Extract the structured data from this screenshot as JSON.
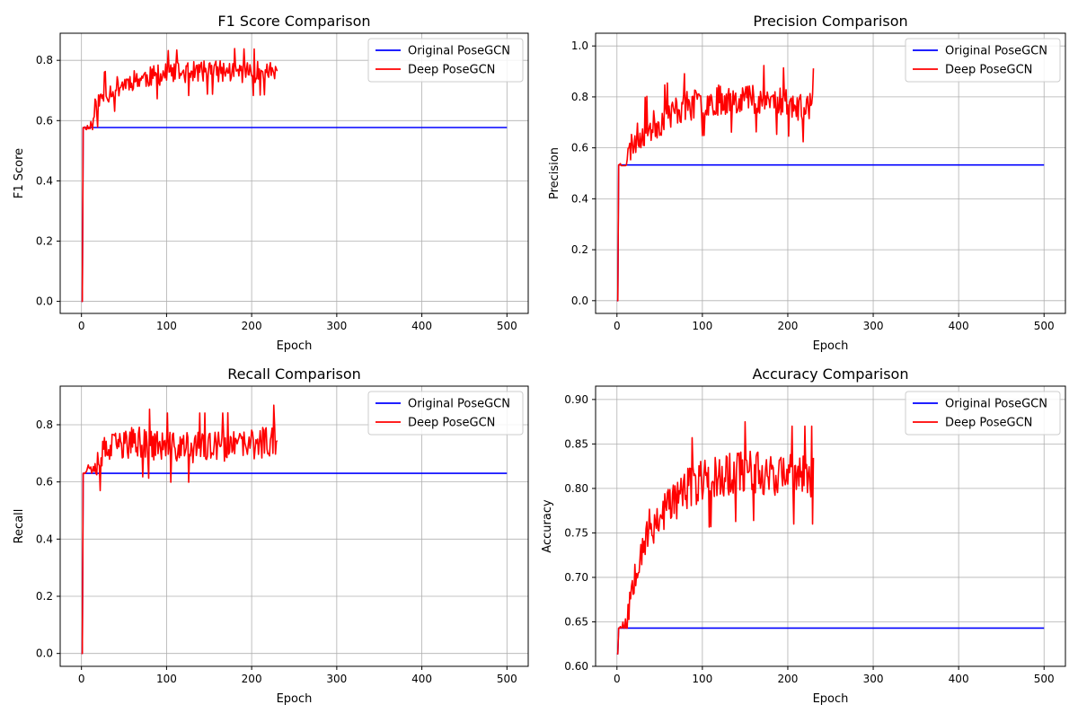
{
  "figure": {
    "background": "#ffffff",
    "grid_color": "#b0b0b0",
    "legend_border": "#cccccc"
  },
  "chart_data": [
    {
      "type": "line",
      "title": "F1 Score Comparison",
      "xlabel": "Epoch",
      "ylabel": "F1 Score",
      "xlim": [
        -25,
        525
      ],
      "ylim": [
        -0.04,
        0.89
      ],
      "xticks": [
        0,
        100,
        200,
        300,
        400,
        500
      ],
      "yticks": [
        0.0,
        0.2,
        0.4,
        0.6,
        0.8
      ],
      "ytick_decimals": 1,
      "grid": true,
      "legend": "top-right",
      "series": [
        {
          "name": "Original PoseGCN",
          "color": "#0000ff",
          "kind": "constant",
          "start": 0,
          "end": 500,
          "start_value": 0.0,
          "value": 0.577,
          "jump_at": 2
        },
        {
          "name": "Deep PoseGCN",
          "color": "#ff0000",
          "kind": "noisy",
          "end": 230,
          "start_value": 0.0,
          "jump_at": 2,
          "seed": 11,
          "anchors": [
            [
              2,
              0.577
            ],
            [
              10,
              0.577
            ],
            [
              15,
              0.64
            ],
            [
              25,
              0.68
            ],
            [
              40,
              0.71
            ],
            [
              60,
              0.735
            ],
            [
              100,
              0.755
            ],
            [
              150,
              0.765
            ],
            [
              200,
              0.76
            ],
            [
              230,
              0.765
            ]
          ],
          "noise": 0.035,
          "clip": [
            0.57,
            0.85
          ]
        }
      ]
    },
    {
      "type": "line",
      "title": "Precision Comparison",
      "xlabel": "Epoch",
      "ylabel": "Precision",
      "xlim": [
        -25,
        525
      ],
      "ylim": [
        -0.05,
        1.05
      ],
      "xticks": [
        0,
        100,
        200,
        300,
        400,
        500
      ],
      "yticks": [
        0.0,
        0.2,
        0.4,
        0.6,
        0.8,
        1.0
      ],
      "ytick_decimals": 1,
      "grid": true,
      "legend": "top-right",
      "series": [
        {
          "name": "Original PoseGCN",
          "color": "#0000ff",
          "kind": "constant",
          "start": 0,
          "end": 500,
          "start_value": 0.0,
          "value": 0.533,
          "jump_at": 2
        },
        {
          "name": "Deep PoseGCN",
          "color": "#ff0000",
          "kind": "noisy",
          "end": 230,
          "start_value": 0.0,
          "jump_at": 2,
          "seed": 23,
          "anchors": [
            [
              2,
              0.533
            ],
            [
              10,
              0.54
            ],
            [
              18,
              0.62
            ],
            [
              30,
              0.66
            ],
            [
              50,
              0.7
            ],
            [
              70,
              0.75
            ],
            [
              100,
              0.78
            ],
            [
              150,
              0.8
            ],
            [
              200,
              0.78
            ],
            [
              215,
              0.75
            ],
            [
              230,
              0.78
            ]
          ],
          "noise": 0.06,
          "clip": [
            0.53,
            1.0
          ]
        }
      ]
    },
    {
      "type": "line",
      "title": "Recall Comparison",
      "xlabel": "Epoch",
      "ylabel": "Recall",
      "xlim": [
        -25,
        525
      ],
      "ylim": [
        -0.045,
        0.935
      ],
      "xticks": [
        0,
        100,
        200,
        300,
        400,
        500
      ],
      "yticks": [
        0.0,
        0.2,
        0.4,
        0.6,
        0.8
      ],
      "ytick_decimals": 1,
      "grid": true,
      "legend": "top-right",
      "series": [
        {
          "name": "Original PoseGCN",
          "color": "#0000ff",
          "kind": "constant",
          "start": 0,
          "end": 500,
          "start_value": 0.0,
          "value": 0.63,
          "jump_at": 2
        },
        {
          "name": "Deep PoseGCN",
          "color": "#ff0000",
          "kind": "noisy",
          "end": 230,
          "start_value": 0.0,
          "jump_at": 2,
          "seed": 37,
          "anchors": [
            [
              2,
              0.63
            ],
            [
              12,
              0.66
            ],
            [
              25,
              0.7
            ],
            [
              45,
              0.73
            ],
            [
              70,
              0.74
            ],
            [
              100,
              0.72
            ],
            [
              130,
              0.72
            ],
            [
              170,
              0.72
            ],
            [
              200,
              0.73
            ],
            [
              230,
              0.75
            ]
          ],
          "noise": 0.055,
          "clip": [
            0.52,
            0.89
          ]
        }
      ]
    },
    {
      "type": "line",
      "title": "Accuracy Comparison",
      "xlabel": "Epoch",
      "ylabel": "Accuracy",
      "xlim": [
        -25,
        525
      ],
      "ylim": [
        0.6,
        0.915
      ],
      "xticks": [
        0,
        100,
        200,
        300,
        400,
        500
      ],
      "yticks": [
        0.6,
        0.65,
        0.7,
        0.75,
        0.8,
        0.85,
        0.9
      ],
      "ytick_decimals": 2,
      "grid": true,
      "legend": "top-right",
      "series": [
        {
          "name": "Original PoseGCN",
          "color": "#0000ff",
          "kind": "constant",
          "start": 0,
          "end": 500,
          "start_value": 0.614,
          "value": 0.643,
          "jump_at": 2
        },
        {
          "name": "Deep PoseGCN",
          "color": "#ff0000",
          "kind": "noisy",
          "end": 230,
          "start_value": 0.614,
          "jump_at": 2,
          "seed": 53,
          "anchors": [
            [
              2,
              0.643
            ],
            [
              12,
              0.645
            ],
            [
              18,
              0.7
            ],
            [
              30,
              0.74
            ],
            [
              50,
              0.77
            ],
            [
              70,
              0.79
            ],
            [
              100,
              0.81
            ],
            [
              150,
              0.82
            ],
            [
              200,
              0.815
            ],
            [
              230,
              0.815
            ]
          ],
          "noise": 0.025,
          "clip": [
            0.643,
            0.9
          ]
        }
      ]
    }
  ]
}
